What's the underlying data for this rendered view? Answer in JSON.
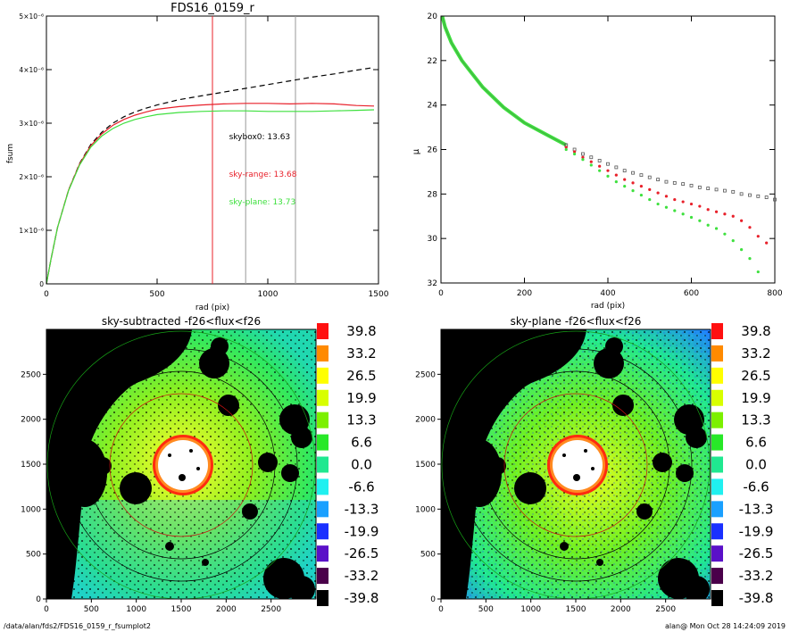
{
  "footer": {
    "left": "/data/alan/fds2/FDS16_0159_r_fsumplot2",
    "right": "alan@  Mon Oct 28 14:24:09 2019"
  },
  "chart_data": [
    {
      "type": "line",
      "title": "FDS16_0159_r",
      "xlabel": "rad (pix)",
      "ylabel": "fsum",
      "xlim": [
        0,
        1500
      ],
      "ylim": [
        0,
        5e-06
      ],
      "x_ticks": [
        0,
        500,
        1000,
        1500
      ],
      "y_ticks": [
        {
          "value": 0,
          "label": "0"
        },
        {
          "value": 1e-06,
          "label": "1×10⁻⁶"
        },
        {
          "value": 2e-06,
          "label": "2×10⁻⁶"
        },
        {
          "value": 3e-06,
          "label": "3×10⁻⁶"
        },
        {
          "value": 4e-06,
          "label": "4×10⁻⁶"
        },
        {
          "value": 5e-06,
          "label": "5×10⁻⁶"
        }
      ],
      "series": [
        {
          "key": "skybox0",
          "color": "#000000",
          "dash": "dashed",
          "x": [
            0,
            20,
            50,
            100,
            150,
            200,
            250,
            300,
            350,
            400,
            450,
            500,
            600,
            700,
            800,
            900,
            1000,
            1100,
            1200,
            1300,
            1400,
            1480
          ],
          "y": [
            0,
            4.5e-07,
            1.05e-06,
            1.75e-06,
            2.25e-06,
            2.6e-06,
            2.83e-06,
            3e-06,
            3.12e-06,
            3.21e-06,
            3.28e-06,
            3.34e-06,
            3.44e-06,
            3.51e-06,
            3.58e-06,
            3.65e-06,
            3.72e-06,
            3.79e-06,
            3.86e-06,
            3.92e-06,
            3.99e-06,
            4.04e-06
          ]
        },
        {
          "key": "sky-range",
          "color": "#e8202a",
          "dash": "solid",
          "x": [
            0,
            20,
            50,
            100,
            150,
            200,
            250,
            300,
            350,
            400,
            450,
            500,
            600,
            700,
            800,
            900,
            1000,
            1100,
            1200,
            1300,
            1400,
            1480
          ],
          "y": [
            0,
            4.5e-07,
            1.05e-06,
            1.75e-06,
            2.24e-06,
            2.58e-06,
            2.8e-06,
            2.96e-06,
            3.07e-06,
            3.15e-06,
            3.21e-06,
            3.26e-06,
            3.31e-06,
            3.34e-06,
            3.36e-06,
            3.37e-06,
            3.37e-06,
            3.36e-06,
            3.37e-06,
            3.36e-06,
            3.33e-06,
            3.32e-06
          ]
        },
        {
          "key": "sky-plane",
          "color": "#3ee03e",
          "dash": "solid",
          "x": [
            0,
            20,
            50,
            100,
            150,
            200,
            250,
            300,
            350,
            400,
            450,
            500,
            600,
            700,
            800,
            900,
            1000,
            1100,
            1200,
            1300,
            1400,
            1480
          ],
          "y": [
            0,
            4.5e-07,
            1.05e-06,
            1.74e-06,
            2.22e-06,
            2.55e-06,
            2.76e-06,
            2.9e-06,
            3e-06,
            3.07e-06,
            3.12e-06,
            3.16e-06,
            3.2e-06,
            3.22e-06,
            3.23e-06,
            3.23e-06,
            3.22e-06,
            3.22e-06,
            3.22e-06,
            3.23e-06,
            3.24e-06,
            3.25e-06
          ]
        }
      ],
      "vlines": [
        {
          "x": 750,
          "color": "#e8202a"
        },
        {
          "x": 900,
          "color": "#999999"
        },
        {
          "x": 1125,
          "color": "#999999"
        }
      ],
      "annotations": [
        {
          "text": "skybox0: 13.63",
          "color": "#000000",
          "x": 825,
          "y": 2.7e-06
        },
        {
          "text": "sky-range: 13.68",
          "color": "#e8202a",
          "x": 825,
          "y": 2e-06
        },
        {
          "text": "sky-plane: 13.73",
          "color": "#3ee03e",
          "x": 825,
          "y": 1.48e-06
        }
      ]
    },
    {
      "type": "scatter",
      "title": "",
      "xlabel": "rad (pix)",
      "ylabel": "μ",
      "xlim": [
        0,
        800
      ],
      "ylim": [
        32,
        20
      ],
      "x_ticks": [
        0,
        200,
        400,
        600,
        800
      ],
      "y_ticks": [
        20,
        22,
        24,
        26,
        28,
        30,
        32
      ],
      "series": [
        {
          "key": "skybox0",
          "color": "#555555",
          "marker": "square",
          "x": [
            300,
            320,
            340,
            360,
            380,
            400,
            420,
            440,
            460,
            480,
            500,
            520,
            540,
            560,
            580,
            600,
            620,
            640,
            660,
            680,
            700,
            720,
            740,
            760,
            780,
            800
          ],
          "y": [
            25.8,
            26.0,
            26.2,
            26.35,
            26.5,
            26.65,
            26.8,
            26.95,
            27.05,
            27.15,
            27.25,
            27.35,
            27.45,
            27.5,
            27.55,
            27.62,
            27.7,
            27.75,
            27.8,
            27.85,
            27.9,
            28.0,
            28.05,
            28.1,
            28.15,
            28.25
          ]
        },
        {
          "key": "sky-range",
          "color": "#e8202a",
          "marker": "dot",
          "x": [
            300,
            320,
            340,
            360,
            380,
            400,
            420,
            440,
            460,
            480,
            500,
            520,
            540,
            560,
            580,
            600,
            620,
            640,
            660,
            680,
            700,
            720,
            740,
            760,
            780
          ],
          "y": [
            25.9,
            26.1,
            26.35,
            26.55,
            26.75,
            26.95,
            27.15,
            27.35,
            27.5,
            27.65,
            27.8,
            27.95,
            28.1,
            28.25,
            28.35,
            28.45,
            28.55,
            28.7,
            28.8,
            28.9,
            29.0,
            29.2,
            29.5,
            29.9,
            30.2
          ]
        },
        {
          "key": "sky-plane",
          "color": "#3ee03e",
          "marker": "dot",
          "x": [
            300,
            320,
            340,
            360,
            380,
            400,
            420,
            440,
            460,
            480,
            500,
            520,
            540,
            560,
            580,
            600,
            620,
            640,
            660,
            680,
            700,
            720,
            740,
            760
          ],
          "y": [
            26.0,
            26.2,
            26.45,
            26.7,
            26.95,
            27.2,
            27.45,
            27.65,
            27.85,
            28.05,
            28.25,
            28.45,
            28.6,
            28.75,
            28.9,
            29.05,
            29.2,
            29.4,
            29.55,
            29.8,
            30.1,
            30.5,
            30.9,
            31.5
          ]
        }
      ],
      "combined_curve": {
        "x": [
          3,
          10,
          25,
          50,
          75,
          100,
          150,
          200,
          250,
          300
        ],
        "y": [
          20.0,
          20.5,
          21.2,
          22.0,
          22.6,
          23.2,
          24.1,
          24.8,
          25.3,
          25.8
        ]
      }
    },
    {
      "type": "heatmap",
      "title": "sky-subtracted -f26<flux<f26",
      "xlim": [
        0,
        3000
      ],
      "ylim": [
        0,
        3000
      ],
      "x_ticks": [
        0,
        500,
        1000,
        1500,
        2000,
        2500
      ],
      "y_ticks": [
        0,
        500,
        1000,
        1500,
        2000,
        2500
      ],
      "colorbar_labels": [
        "39.8",
        "33.2",
        "26.5",
        "19.9",
        "13.3",
        "6.6",
        "0.0",
        "-6.6",
        "-13.3",
        "-19.9",
        "-26.5",
        "-33.2",
        "-39.8"
      ],
      "colorbar_colors": [
        "#ff1010",
        "#ff8a00",
        "#ffff00",
        "#d8ff00",
        "#7cf000",
        "#28e828",
        "#20e890",
        "#20f0f0",
        "#1aa0ff",
        "#1a30ff",
        "#5a10c8",
        "#4a004a",
        "#000000"
      ]
    },
    {
      "type": "heatmap",
      "title": "sky-plane -f26<flux<f26",
      "xlim": [
        0,
        3000
      ],
      "ylim": [
        0,
        3000
      ],
      "x_ticks": [
        0,
        500,
        1000,
        1500,
        2000,
        2500
      ],
      "y_ticks": [
        0,
        500,
        1000,
        1500,
        2000,
        2500
      ],
      "colorbar_labels": [
        "39.8",
        "33.2",
        "26.5",
        "19.9",
        "13.3",
        "6.6",
        "0.0",
        "-6.6",
        "-13.3",
        "-19.9",
        "-26.5",
        "-33.2",
        "-39.8"
      ],
      "colorbar_colors": [
        "#ff1010",
        "#ff8a00",
        "#ffff00",
        "#d8ff00",
        "#7cf000",
        "#28e828",
        "#20e890",
        "#20f0f0",
        "#1aa0ff",
        "#1a30ff",
        "#5a10c8",
        "#4a004a",
        "#000000"
      ]
    }
  ]
}
